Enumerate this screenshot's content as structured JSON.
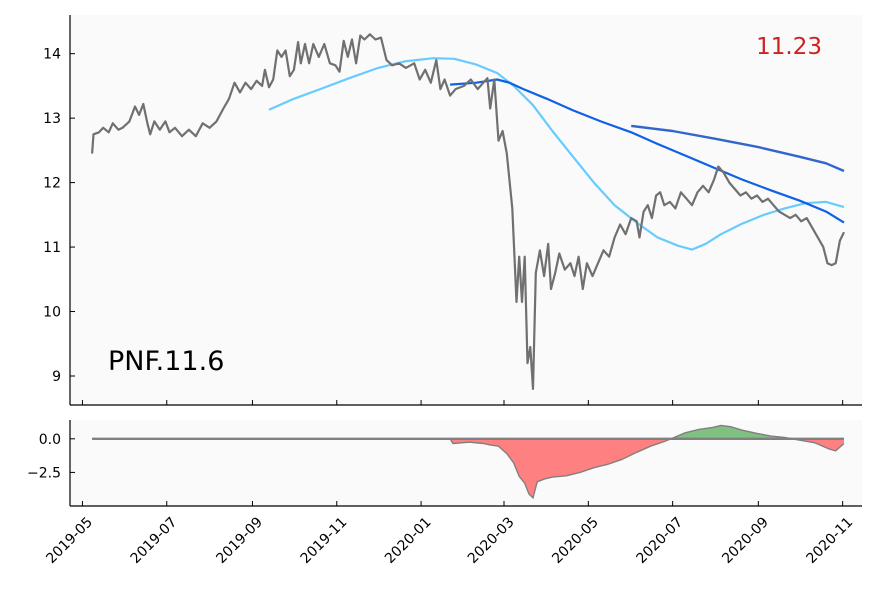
{
  "chart_data": [
    {
      "type": "line",
      "ticker_label": "PNF.11.6",
      "last_value_label": "11.23",
      "x_range": [
        "2019-04-22",
        "2020-11-15"
      ],
      "ylim": [
        8.55,
        14.6
      ],
      "yticks": [
        9,
        10,
        11,
        12,
        13,
        14
      ],
      "grid": false,
      "colors": {
        "price": "#707070",
        "sma_fast": "#66ccff",
        "sma_mid": "#1060e8",
        "sma_slow": "#3366cc",
        "last_value": "#cc2222",
        "background": "#fafafa"
      },
      "series": [
        {
          "key": "price",
          "points": [
            [
              "2019-05-08",
              12.45
            ],
            [
              "2019-05-09",
              12.75
            ],
            [
              "2019-05-13",
              12.78
            ],
            [
              "2019-05-16",
              12.85
            ],
            [
              "2019-05-20",
              12.78
            ],
            [
              "2019-05-23",
              12.92
            ],
            [
              "2019-05-27",
              12.82
            ],
            [
              "2019-05-30",
              12.85
            ],
            [
              "2019-06-04",
              12.95
            ],
            [
              "2019-06-08",
              13.18
            ],
            [
              "2019-06-11",
              13.05
            ],
            [
              "2019-06-14",
              13.22
            ],
            [
              "2019-06-17",
              12.92
            ],
            [
              "2019-06-19",
              12.75
            ],
            [
              "2019-06-22",
              12.95
            ],
            [
              "2019-06-26",
              12.82
            ],
            [
              "2019-06-30",
              12.95
            ],
            [
              "2019-07-03",
              12.78
            ],
            [
              "2019-07-07",
              12.85
            ],
            [
              "2019-07-12",
              12.72
            ],
            [
              "2019-07-17",
              12.82
            ],
            [
              "2019-07-22",
              12.72
            ],
            [
              "2019-07-27",
              12.92
            ],
            [
              "2019-08-01",
              12.85
            ],
            [
              "2019-08-06",
              12.95
            ],
            [
              "2019-08-11",
              13.15
            ],
            [
              "2019-08-15",
              13.3
            ],
            [
              "2019-08-19",
              13.55
            ],
            [
              "2019-08-23",
              13.4
            ],
            [
              "2019-08-27",
              13.55
            ],
            [
              "2019-08-31",
              13.45
            ],
            [
              "2019-09-04",
              13.58
            ],
            [
              "2019-09-08",
              13.5
            ],
            [
              "2019-09-10",
              13.75
            ],
            [
              "2019-09-13",
              13.48
            ],
            [
              "2019-09-16",
              13.6
            ],
            [
              "2019-09-19",
              14.05
            ],
            [
              "2019-09-22",
              13.95
            ],
            [
              "2019-09-25",
              14.05
            ],
            [
              "2019-09-28",
              13.65
            ],
            [
              "2019-10-01",
              13.75
            ],
            [
              "2019-10-04",
              14.18
            ],
            [
              "2019-10-06",
              13.85
            ],
            [
              "2019-10-09",
              14.15
            ],
            [
              "2019-10-12",
              13.85
            ],
            [
              "2019-10-15",
              14.15
            ],
            [
              "2019-10-19",
              13.95
            ],
            [
              "2019-10-23",
              14.15
            ],
            [
              "2019-10-27",
              13.85
            ],
            [
              "2019-10-31",
              13.82
            ],
            [
              "2019-11-03",
              13.72
            ],
            [
              "2019-11-06",
              14.2
            ],
            [
              "2019-11-09",
              13.95
            ],
            [
              "2019-11-12",
              14.22
            ],
            [
              "2019-11-15",
              13.85
            ],
            [
              "2019-11-18",
              14.28
            ],
            [
              "2019-11-21",
              14.22
            ],
            [
              "2019-11-25",
              14.3
            ],
            [
              "2019-11-29",
              14.22
            ],
            [
              "2019-12-03",
              14.25
            ],
            [
              "2019-12-07",
              13.9
            ],
            [
              "2019-12-11",
              13.82
            ],
            [
              "2019-12-16",
              13.85
            ],
            [
              "2019-12-21",
              13.78
            ],
            [
              "2019-12-27",
              13.85
            ],
            [
              "2019-12-31",
              13.6
            ],
            [
              "2020-01-04",
              13.75
            ],
            [
              "2020-01-08",
              13.55
            ],
            [
              "2020-01-12",
              13.9
            ],
            [
              "2020-01-15",
              13.45
            ],
            [
              "2020-01-18",
              13.6
            ],
            [
              "2020-01-22",
              13.35
            ],
            [
              "2020-01-26",
              13.45
            ],
            [
              "2020-02-01",
              13.5
            ],
            [
              "2020-02-06",
              13.6
            ],
            [
              "2020-02-11",
              13.45
            ],
            [
              "2020-02-15",
              13.55
            ],
            [
              "2020-02-18",
              13.62
            ],
            [
              "2020-02-20",
              13.15
            ],
            [
              "2020-02-23",
              13.6
            ],
            [
              "2020-02-26",
              12.65
            ],
            [
              "2020-02-29",
              12.8
            ],
            [
              "2020-03-03",
              12.45
            ],
            [
              "2020-03-07",
              11.6
            ],
            [
              "2020-03-10",
              10.15
            ],
            [
              "2020-03-12",
              10.85
            ],
            [
              "2020-03-14",
              10.15
            ],
            [
              "2020-03-16",
              10.85
            ],
            [
              "2020-03-18",
              9.2
            ],
            [
              "2020-03-20",
              9.45
            ],
            [
              "2020-03-22",
              8.8
            ],
            [
              "2020-03-24",
              10.6
            ],
            [
              "2020-03-27",
              10.95
            ],
            [
              "2020-03-30",
              10.55
            ],
            [
              "2020-04-02",
              11.05
            ],
            [
              "2020-04-04",
              10.35
            ],
            [
              "2020-04-07",
              10.6
            ],
            [
              "2020-04-10",
              10.9
            ],
            [
              "2020-04-14",
              10.65
            ],
            [
              "2020-04-18",
              10.75
            ],
            [
              "2020-04-21",
              10.55
            ],
            [
              "2020-04-24",
              10.85
            ],
            [
              "2020-04-27",
              10.35
            ],
            [
              "2020-04-30",
              10.75
            ],
            [
              "2020-05-04",
              10.55
            ],
            [
              "2020-05-08",
              10.75
            ],
            [
              "2020-05-12",
              10.95
            ],
            [
              "2020-05-16",
              10.85
            ],
            [
              "2020-05-20",
              11.15
            ],
            [
              "2020-05-24",
              11.35
            ],
            [
              "2020-05-28",
              11.2
            ],
            [
              "2020-06-01",
              11.45
            ],
            [
              "2020-06-05",
              11.4
            ],
            [
              "2020-06-07",
              11.15
            ],
            [
              "2020-06-10",
              11.55
            ],
            [
              "2020-06-13",
              11.65
            ],
            [
              "2020-06-16",
              11.45
            ],
            [
              "2020-06-19",
              11.8
            ],
            [
              "2020-06-22",
              11.85
            ],
            [
              "2020-06-25",
              11.65
            ],
            [
              "2020-06-29",
              11.7
            ],
            [
              "2020-07-03",
              11.6
            ],
            [
              "2020-07-07",
              11.85
            ],
            [
              "2020-07-11",
              11.75
            ],
            [
              "2020-07-15",
              11.65
            ],
            [
              "2020-07-19",
              11.85
            ],
            [
              "2020-07-23",
              11.95
            ],
            [
              "2020-07-27",
              11.85
            ],
            [
              "2020-07-31",
              12.05
            ],
            [
              "2020-08-03",
              12.25
            ],
            [
              "2020-08-07",
              12.15
            ],
            [
              "2020-08-11",
              12.0
            ],
            [
              "2020-08-15",
              11.9
            ],
            [
              "2020-08-19",
              11.8
            ],
            [
              "2020-08-23",
              11.85
            ],
            [
              "2020-08-27",
              11.75
            ],
            [
              "2020-08-31",
              11.8
            ],
            [
              "2020-09-04",
              11.7
            ],
            [
              "2020-09-08",
              11.75
            ],
            [
              "2020-09-12",
              11.65
            ],
            [
              "2020-09-16",
              11.55
            ],
            [
              "2020-09-20",
              11.5
            ],
            [
              "2020-09-24",
              11.45
            ],
            [
              "2020-09-28",
              11.5
            ],
            [
              "2020-10-02",
              11.4
            ],
            [
              "2020-10-06",
              11.45
            ],
            [
              "2020-10-10",
              11.3
            ],
            [
              "2020-10-14",
              11.15
            ],
            [
              "2020-10-18",
              11.0
            ],
            [
              "2020-10-21",
              10.75
            ],
            [
              "2020-10-24",
              10.72
            ],
            [
              "2020-10-27",
              10.75
            ],
            [
              "2020-10-30",
              11.1
            ],
            [
              "2020-11-02",
              11.23
            ]
          ]
        },
        {
          "key": "sma_fast",
          "points": [
            [
              "2019-09-13",
              13.13
            ],
            [
              "2019-10-01",
              13.3
            ],
            [
              "2019-10-20",
              13.45
            ],
            [
              "2019-11-10",
              13.62
            ],
            [
              "2019-12-01",
              13.78
            ],
            [
              "2019-12-20",
              13.88
            ],
            [
              "2020-01-10",
              13.93
            ],
            [
              "2020-01-25",
              13.92
            ],
            [
              "2020-02-10",
              13.83
            ],
            [
              "2020-02-25",
              13.7
            ],
            [
              "2020-03-08",
              13.5
            ],
            [
              "2020-03-22",
              13.2
            ],
            [
              "2020-04-05",
              12.8
            ],
            [
              "2020-04-20",
              12.4
            ],
            [
              "2020-05-05",
              12.0
            ],
            [
              "2020-05-20",
              11.65
            ],
            [
              "2020-06-05",
              11.38
            ],
            [
              "2020-06-20",
              11.15
            ],
            [
              "2020-07-05",
              11.02
            ],
            [
              "2020-07-15",
              10.96
            ],
            [
              "2020-07-25",
              11.05
            ],
            [
              "2020-08-05",
              11.2
            ],
            [
              "2020-08-20",
              11.36
            ],
            [
              "2020-09-05",
              11.5
            ],
            [
              "2020-09-20",
              11.6
            ],
            [
              "2020-10-05",
              11.68
            ],
            [
              "2020-10-20",
              11.7
            ],
            [
              "2020-11-02",
              11.62
            ]
          ]
        },
        {
          "key": "sma_mid",
          "points": [
            [
              "2020-01-22",
              13.52
            ],
            [
              "2020-02-10",
              13.55
            ],
            [
              "2020-02-25",
              13.6
            ],
            [
              "2020-03-05",
              13.55
            ],
            [
              "2020-03-15",
              13.45
            ],
            [
              "2020-04-01",
              13.3
            ],
            [
              "2020-04-20",
              13.12
            ],
            [
              "2020-05-10",
              12.95
            ],
            [
              "2020-06-01",
              12.78
            ],
            [
              "2020-06-20",
              12.6
            ],
            [
              "2020-07-10",
              12.42
            ],
            [
              "2020-08-01",
              12.22
            ],
            [
              "2020-08-20",
              12.05
            ],
            [
              "2020-09-10",
              11.88
            ],
            [
              "2020-10-01",
              11.72
            ],
            [
              "2020-10-20",
              11.55
            ],
            [
              "2020-11-02",
              11.38
            ]
          ]
        },
        {
          "key": "sma_slow",
          "points": [
            [
              "2020-06-01",
              12.88
            ],
            [
              "2020-07-01",
              12.8
            ],
            [
              "2020-08-01",
              12.68
            ],
            [
              "2020-09-01",
              12.55
            ],
            [
              "2020-10-01",
              12.4
            ],
            [
              "2020-10-20",
              12.3
            ],
            [
              "2020-11-02",
              12.18
            ]
          ]
        }
      ]
    },
    {
      "type": "area",
      "ylim": [
        -5.0,
        1.4
      ],
      "yticks": [
        0.0,
        -2.5
      ],
      "ytick_labels": [
        "0.0",
        "−2.5"
      ],
      "colors": {
        "positive": "#80c080",
        "negative": "#ff8080",
        "edge": "#808080",
        "baseline": "#808080"
      },
      "x_ticks": [
        "2019-05",
        "2019-07",
        "2019-09",
        "2019-11",
        "2020-01",
        "2020-03",
        "2020-05",
        "2020-07",
        "2020-09",
        "2020-11"
      ],
      "points": [
        [
          "2019-05-08",
          0.0
        ],
        [
          "2020-01-22",
          0.0
        ],
        [
          "2020-01-24",
          -0.35
        ],
        [
          "2020-02-05",
          -0.25
        ],
        [
          "2020-02-15",
          -0.35
        ],
        [
          "2020-02-20",
          -0.45
        ],
        [
          "2020-02-26",
          -0.55
        ],
        [
          "2020-03-03",
          -1.1
        ],
        [
          "2020-03-08",
          -1.8
        ],
        [
          "2020-03-12",
          -2.8
        ],
        [
          "2020-03-16",
          -3.3
        ],
        [
          "2020-03-19",
          -4.1
        ],
        [
          "2020-03-22",
          -4.4
        ],
        [
          "2020-03-25",
          -3.2
        ],
        [
          "2020-03-30",
          -3.0
        ],
        [
          "2020-04-05",
          -2.85
        ],
        [
          "2020-04-15",
          -2.75
        ],
        [
          "2020-04-25",
          -2.5
        ],
        [
          "2020-05-05",
          -2.15
        ],
        [
          "2020-05-15",
          -1.9
        ],
        [
          "2020-05-25",
          -1.55
        ],
        [
          "2020-06-05",
          -1.0
        ],
        [
          "2020-06-15",
          -0.55
        ],
        [
          "2020-06-25",
          -0.2
        ],
        [
          "2020-07-01",
          0.05
        ],
        [
          "2020-07-10",
          0.45
        ],
        [
          "2020-07-20",
          0.7
        ],
        [
          "2020-07-30",
          0.85
        ],
        [
          "2020-08-05",
          1.0
        ],
        [
          "2020-08-12",
          0.9
        ],
        [
          "2020-08-20",
          0.65
        ],
        [
          "2020-08-31",
          0.4
        ],
        [
          "2020-09-10",
          0.2
        ],
        [
          "2020-09-20",
          0.1
        ],
        [
          "2020-10-01",
          -0.1
        ],
        [
          "2020-10-12",
          -0.3
        ],
        [
          "2020-10-22",
          -0.75
        ],
        [
          "2020-10-27",
          -0.9
        ],
        [
          "2020-11-02",
          -0.35
        ]
      ]
    }
  ]
}
